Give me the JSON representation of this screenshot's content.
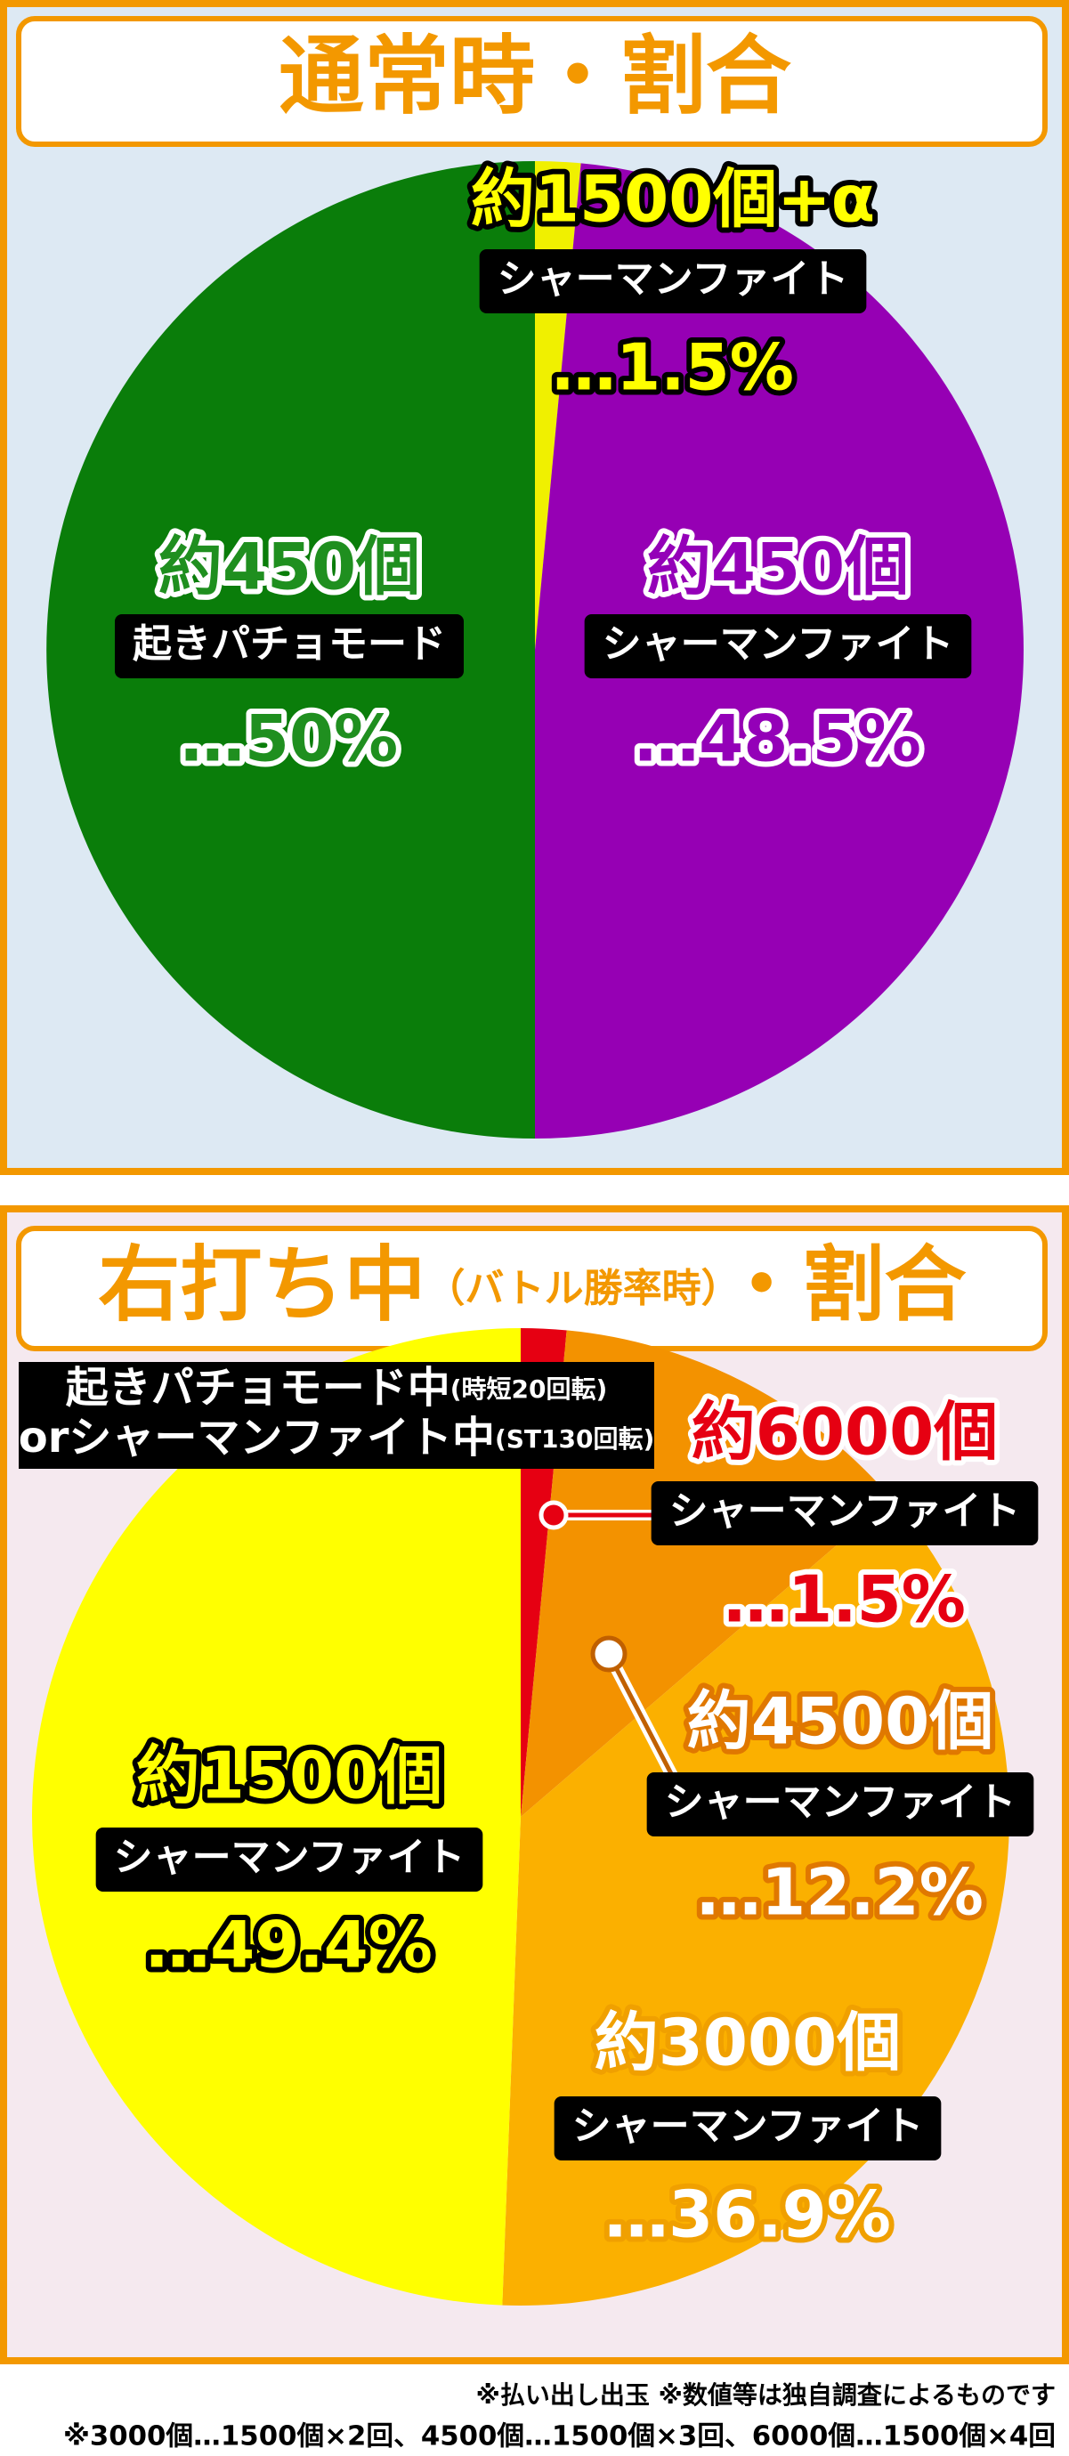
{
  "chart_data": [
    {
      "type": "pie",
      "title": "通常時・割合",
      "values": [
        1.5,
        48.5,
        50
      ],
      "value_labels": [
        "…1.5%",
        "…48.5%",
        "…50%"
      ],
      "amounts": [
        "約1500個+α",
        "約450個",
        "約450個"
      ],
      "labels": [
        "シャーマンファイト",
        "シャーマンファイト",
        "起きパチョモード"
      ],
      "colors": [
        "#f0f000",
        "#9600b4",
        "#0a7d0a"
      ],
      "label_colors": [
        "#ffff00",
        "#9400b8",
        "#1f8f1f"
      ],
      "label_strokes": [
        "#000000",
        "#ffffff",
        "#ffffff"
      ]
    },
    {
      "type": "pie",
      "title_parts": [
        "右打ち中",
        "（バトル勝率時）",
        "・割合"
      ],
      "note_lines": [
        [
          "起きパチョモード中",
          "(時短20回転)"
        ],
        [
          "orシャーマンファイト中",
          "(ST130回転)"
        ]
      ],
      "values": [
        1.5,
        12.2,
        36.9,
        49.4
      ],
      "value_labels": [
        "…1.5%",
        "…12.2%",
        "…36.9%",
        "…49.4%"
      ],
      "amounts": [
        "約6000個",
        "約4500個",
        "約3000個",
        "約1500個"
      ],
      "labels": [
        "シャーマンファイト",
        "シャーマンファイト",
        "シャーマンファイト",
        "シャーマンファイト"
      ],
      "colors": [
        "#e60012",
        "#f39200",
        "#fbb000",
        "#ffff00"
      ],
      "label_colors": [
        "#e60012",
        "#ffffff",
        "#ffffff",
        "#ffff00"
      ],
      "label_strokes": [
        "#ffffff",
        "#e07800",
        "#f0a000",
        "#000000"
      ]
    }
  ],
  "footnotes": [
    "※払い出し出玉 ※数値等は独自調査によるものです",
    "※3000個…1500個×2回、4500個…1500個×3回、6000個…1500個×4回"
  ]
}
